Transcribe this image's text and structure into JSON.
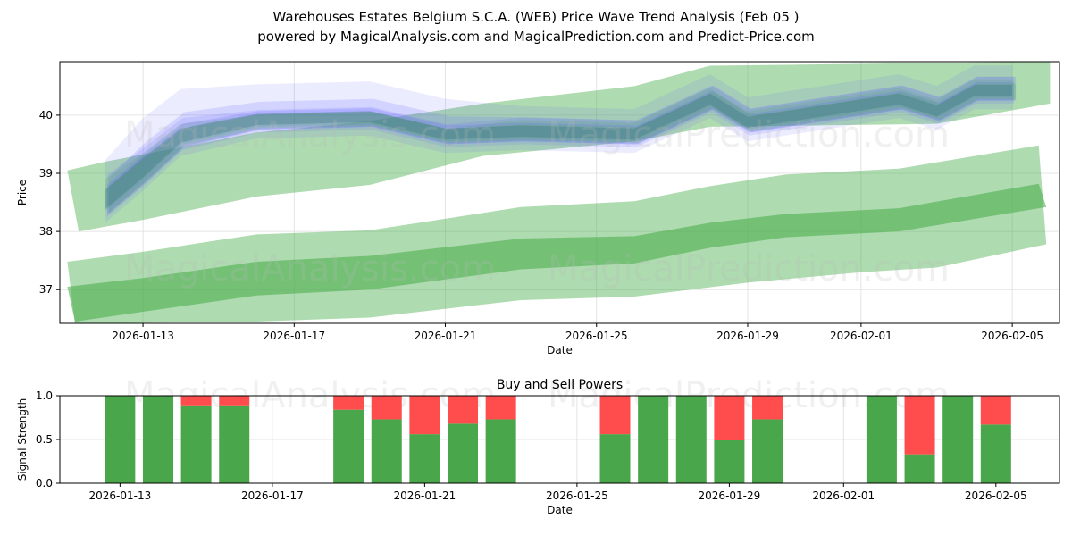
{
  "title_line1": "Warehouses Estates Belgium S.C.A. (WEB) Price Wave Trend Analysis (Feb 05 )",
  "title_line2": "powered by MagicalAnalysis.com and MagicalPrediction.com and Predict-Price.com",
  "watermarks": [
    "MagicalAnalysis.com",
    "MagicalPrediction.com"
  ],
  "colors": {
    "green_band": "#4caf50",
    "blue_band": "#6666ff",
    "buy": "#4aa64a",
    "sell": "#ff4d4d"
  },
  "chart_data": [
    {
      "type": "area",
      "title": "",
      "xlabel": "Date",
      "ylabel": "Price",
      "xlim": [
        "2026-01-10.8",
        "2026-02-06.25"
      ],
      "ylim": [
        36.42,
        40.92
      ],
      "yticks": [
        37,
        38,
        39,
        40
      ],
      "xticks": [
        "2026-01-13",
        "2026-01-17",
        "2026-01-21",
        "2026-01-25",
        "2026-01-29",
        "2026-02-01",
        "2026-02-05"
      ],
      "grid": true,
      "green_bands": [
        {
          "name": "upper-wide-band",
          "opacity": 0.45,
          "upper": [
            [
              "2026-01-11",
              39.05
            ],
            [
              "2026-01-12",
              39.2
            ],
            [
              "2026-01-16",
              39.7
            ],
            [
              "2026-01-19",
              39.9
            ],
            [
              "2026-01-22",
              40.2
            ],
            [
              "2026-01-26",
              40.5
            ],
            [
              "2026-01-28",
              40.85
            ],
            [
              "2026-02-03",
              40.9
            ],
            [
              "2026-02-06",
              40.92
            ]
          ],
          "lower": [
            [
              "2026-01-11.3",
              38.0
            ],
            [
              "2026-01-13",
              38.2
            ],
            [
              "2026-01-16",
              38.6
            ],
            [
              "2026-01-19",
              38.8
            ],
            [
              "2026-01-22",
              39.3
            ],
            [
              "2026-01-26",
              39.55
            ],
            [
              "2026-01-28",
              39.8
            ],
            [
              "2026-02-03",
              39.85
            ],
            [
              "2026-02-06",
              40.2
            ]
          ]
        },
        {
          "name": "lower-wide-band",
          "opacity": 0.45,
          "upper": [
            [
              "2026-01-11",
              37.48
            ],
            [
              "2026-01-13",
              37.65
            ],
            [
              "2026-01-16",
              37.95
            ],
            [
              "2026-01-19",
              38.02
            ],
            [
              "2026-01-23",
              38.42
            ],
            [
              "2026-01-26",
              38.52
            ],
            [
              "2026-01-28",
              38.78
            ],
            [
              "2026-01-30",
              38.98
            ],
            [
              "2026-02-02",
              39.08
            ],
            [
              "2026-02-05.7",
              39.48
            ]
          ],
          "lower": [
            [
              "2026-01-11.2",
              36.42
            ],
            [
              "2026-01-16",
              36.45
            ],
            [
              "2026-01-19",
              36.52
            ],
            [
              "2026-01-23",
              36.82
            ],
            [
              "2026-01-26",
              36.88
            ],
            [
              "2026-01-29",
              37.12
            ],
            [
              "2026-02-01",
              37.3
            ],
            [
              "2026-02-03",
              37.38
            ],
            [
              "2026-02-05.9",
              37.78
            ]
          ]
        },
        {
          "name": "lower-core-band",
          "opacity": 0.6,
          "upper": [
            [
              "2026-01-11",
              37.05
            ],
            [
              "2026-01-13",
              37.2
            ],
            [
              "2026-01-16",
              37.48
            ],
            [
              "2026-01-19",
              37.58
            ],
            [
              "2026-01-23",
              37.88
            ],
            [
              "2026-01-26",
              37.92
            ],
            [
              "2026-01-28",
              38.15
            ],
            [
              "2026-01-30",
              38.3
            ],
            [
              "2026-02-02",
              38.4
            ],
            [
              "2026-02-05.7",
              38.82
            ]
          ],
          "lower": [
            [
              "2026-01-11.2",
              36.45
            ],
            [
              "2026-01-13",
              36.62
            ],
            [
              "2026-01-16",
              36.9
            ],
            [
              "2026-01-19",
              37.0
            ],
            [
              "2026-01-23",
              37.35
            ],
            [
              "2026-01-26",
              37.45
            ],
            [
              "2026-01-28",
              37.72
            ],
            [
              "2026-01-30",
              37.9
            ],
            [
              "2026-02-02",
              38.0
            ],
            [
              "2026-02-05.9",
              38.42
            ]
          ]
        }
      ],
      "wave_center": [
        [
          "2026-01-12",
          38.6
        ],
        [
          "2026-01-13",
          39.15
        ],
        [
          "2026-01-14",
          39.65
        ],
        [
          "2026-01-16",
          39.95
        ],
        [
          "2026-01-19",
          40.0
        ],
        [
          "2026-01-21",
          39.7
        ],
        [
          "2026-01-23",
          39.75
        ],
        [
          "2026-01-26",
          39.7
        ],
        [
          "2026-01-28",
          40.3
        ],
        [
          "2026-01-29",
          39.9
        ],
        [
          "2026-02-02",
          40.3
        ],
        [
          "2026-02-03",
          40.1
        ],
        [
          "2026-02-04",
          40.45
        ],
        [
          "2026-02-05",
          40.45
        ]
      ]
    },
    {
      "type": "bar",
      "title": "Buy and Sell Powers",
      "xlabel": "Date",
      "ylabel": "Signal Strength",
      "ylim": [
        0,
        1
      ],
      "yticks": [
        "0.0",
        "0.5",
        "1.0"
      ],
      "xlim": [
        "2026-01-11.42",
        "2026-02-06.67"
      ],
      "xticks": [
        "2026-01-13",
        "2026-01-17",
        "2026-01-21",
        "2026-01-25",
        "2026-01-29",
        "2026-02-01",
        "2026-02-05"
      ],
      "categories": [
        "2026-01-13",
        "2026-01-14",
        "2026-01-15",
        "2026-01-16",
        "2026-01-19",
        "2026-01-20",
        "2026-01-21",
        "2026-01-22",
        "2026-01-23",
        "2026-01-26",
        "2026-01-27",
        "2026-01-28",
        "2026-01-29",
        "2026-01-30",
        "2026-02-02",
        "2026-02-03",
        "2026-02-04",
        "2026-02-05"
      ],
      "series": [
        {
          "name": "Buy",
          "values": [
            1,
            1,
            0.89,
            0.89,
            0.84,
            0.73,
            0.56,
            0.68,
            0.73,
            0.56,
            1,
            1,
            0.5,
            0.73,
            1,
            0.33,
            1,
            0.67
          ]
        },
        {
          "name": "Sell",
          "values": [
            0,
            0,
            0.11,
            0.11,
            0.16,
            0.27,
            0.44,
            0.32,
            0.27,
            0.44,
            0,
            0,
            0.5,
            0.27,
            0,
            0.67,
            0,
            0.33
          ]
        }
      ]
    }
  ]
}
